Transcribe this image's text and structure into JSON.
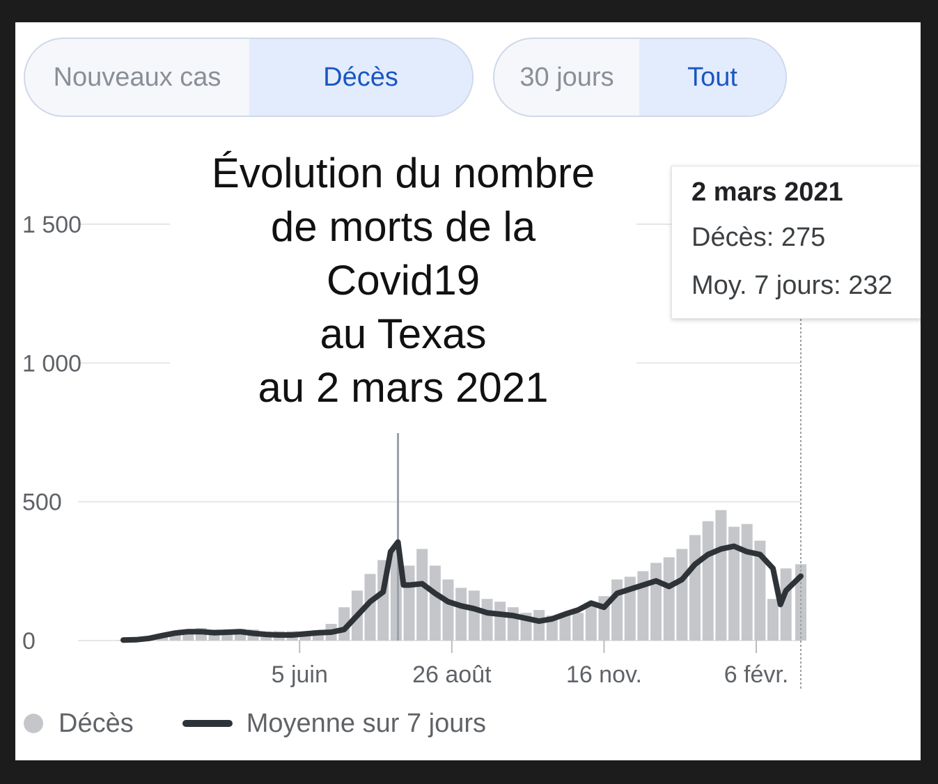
{
  "controls": {
    "metric": {
      "options": [
        "Nouveaux cas",
        "Décès"
      ],
      "selected": "Décès"
    },
    "range": {
      "options": [
        "30 jours",
        "Tout"
      ],
      "selected": "Tout"
    }
  },
  "overlay_title": "Évolution du nombre\nde morts de la\nCovid19\nau Texas\nau 2 mars 2021",
  "tooltip": {
    "date": "2 mars 2021",
    "deaths_label": "Décès: 275",
    "avg_label": "Moy. 7 jours: 232"
  },
  "legend": {
    "bars": "Décès",
    "line": "Moyenne sur 7 jours"
  },
  "colors": {
    "bars": "#c4c6ca",
    "line": "#2e3338",
    "accent": "#1a56c2",
    "grid": "#e6e6e6"
  },
  "chart_data": {
    "type": "bar",
    "title": "Évolution du nombre de morts de la Covid19 au Texas au 2 mars 2021",
    "xlabel": "",
    "ylabel": "",
    "x_range": [
      "2020-03-02",
      "2021-03-02"
    ],
    "x_ticks": [
      {
        "date": "2020-06-05",
        "label": "5 juin"
      },
      {
        "date": "2020-08-26",
        "label": "26 août"
      },
      {
        "date": "2020-11-16",
        "label": "16 nov."
      },
      {
        "date": "2021-02-06",
        "label": "6 févr."
      }
    ],
    "y_ticks": [
      {
        "value": 0,
        "label": "0"
      },
      {
        "value": 500,
        "label": "500"
      },
      {
        "value": 1000,
        "label": "1 000"
      },
      {
        "value": 1500,
        "label": "1 500"
      }
    ],
    "ylim": [
      0,
      1500
    ],
    "grid": true,
    "series": [
      {
        "name": "Décès",
        "kind": "bar",
        "dates": [
          "2020-03-02",
          "2020-03-09",
          "2020-03-16",
          "2020-03-23",
          "2020-03-30",
          "2020-04-06",
          "2020-04-13",
          "2020-04-20",
          "2020-04-27",
          "2020-05-04",
          "2020-05-11",
          "2020-05-18",
          "2020-05-25",
          "2020-06-01",
          "2020-06-08",
          "2020-06-15",
          "2020-06-22",
          "2020-06-29",
          "2020-07-06",
          "2020-07-13",
          "2020-07-20",
          "2020-07-27",
          "2020-07-28",
          "2020-08-03",
          "2020-08-10",
          "2020-08-17",
          "2020-08-24",
          "2020-08-31",
          "2020-09-07",
          "2020-09-14",
          "2020-09-21",
          "2020-09-28",
          "2020-10-05",
          "2020-10-12",
          "2020-10-19",
          "2020-10-26",
          "2020-11-02",
          "2020-11-09",
          "2020-11-16",
          "2020-11-23",
          "2020-11-30",
          "2020-12-07",
          "2020-12-14",
          "2020-12-21",
          "2020-12-28",
          "2021-01-04",
          "2021-01-11",
          "2021-01-18",
          "2021-01-25",
          "2021-02-01",
          "2021-02-08",
          "2021-02-15",
          "2021-02-22",
          "2021-03-02"
        ],
        "values": [
          2,
          4,
          10,
          22,
          32,
          40,
          45,
          40,
          38,
          42,
          40,
          32,
          34,
          34,
          30,
          38,
          60,
          120,
          180,
          240,
          290,
          330,
          750,
          270,
          330,
          270,
          220,
          190,
          180,
          150,
          140,
          120,
          100,
          110,
          90,
          100,
          100,
          130,
          160,
          220,
          230,
          250,
          280,
          300,
          330,
          380,
          430,
          470,
          410,
          420,
          360,
          150,
          260,
          275
        ]
      },
      {
        "name": "Moyenne sur 7 jours",
        "kind": "line",
        "dates": [
          "2020-03-02",
          "2020-03-09",
          "2020-03-16",
          "2020-03-23",
          "2020-03-30",
          "2020-04-06",
          "2020-04-13",
          "2020-04-20",
          "2020-04-27",
          "2020-05-04",
          "2020-05-11",
          "2020-05-18",
          "2020-05-25",
          "2020-06-01",
          "2020-06-08",
          "2020-06-15",
          "2020-06-22",
          "2020-06-29",
          "2020-07-06",
          "2020-07-13",
          "2020-07-20",
          "2020-07-24",
          "2020-07-28",
          "2020-07-31",
          "2020-08-03",
          "2020-08-10",
          "2020-08-17",
          "2020-08-24",
          "2020-08-31",
          "2020-09-07",
          "2020-09-14",
          "2020-09-21",
          "2020-09-28",
          "2020-10-05",
          "2020-10-12",
          "2020-10-19",
          "2020-10-26",
          "2020-11-02",
          "2020-11-09",
          "2020-11-16",
          "2020-11-23",
          "2020-11-30",
          "2020-12-07",
          "2020-12-14",
          "2020-12-21",
          "2020-12-28",
          "2021-01-04",
          "2021-01-11",
          "2021-01-18",
          "2021-01-25",
          "2021-02-01",
          "2021-02-08",
          "2021-02-15",
          "2021-02-19",
          "2021-02-22",
          "2021-03-02"
        ],
        "values": [
          2,
          3,
          8,
          18,
          27,
          32,
          32,
          28,
          30,
          32,
          26,
          22,
          20,
          20,
          24,
          28,
          30,
          40,
          90,
          140,
          175,
          320,
          355,
          200,
          200,
          205,
          170,
          140,
          125,
          115,
          100,
          95,
          90,
          80,
          70,
          78,
          95,
          110,
          135,
          120,
          170,
          185,
          200,
          215,
          195,
          220,
          275,
          310,
          330,
          340,
          320,
          310,
          260,
          130,
          180,
          232
        ]
      }
    ]
  }
}
